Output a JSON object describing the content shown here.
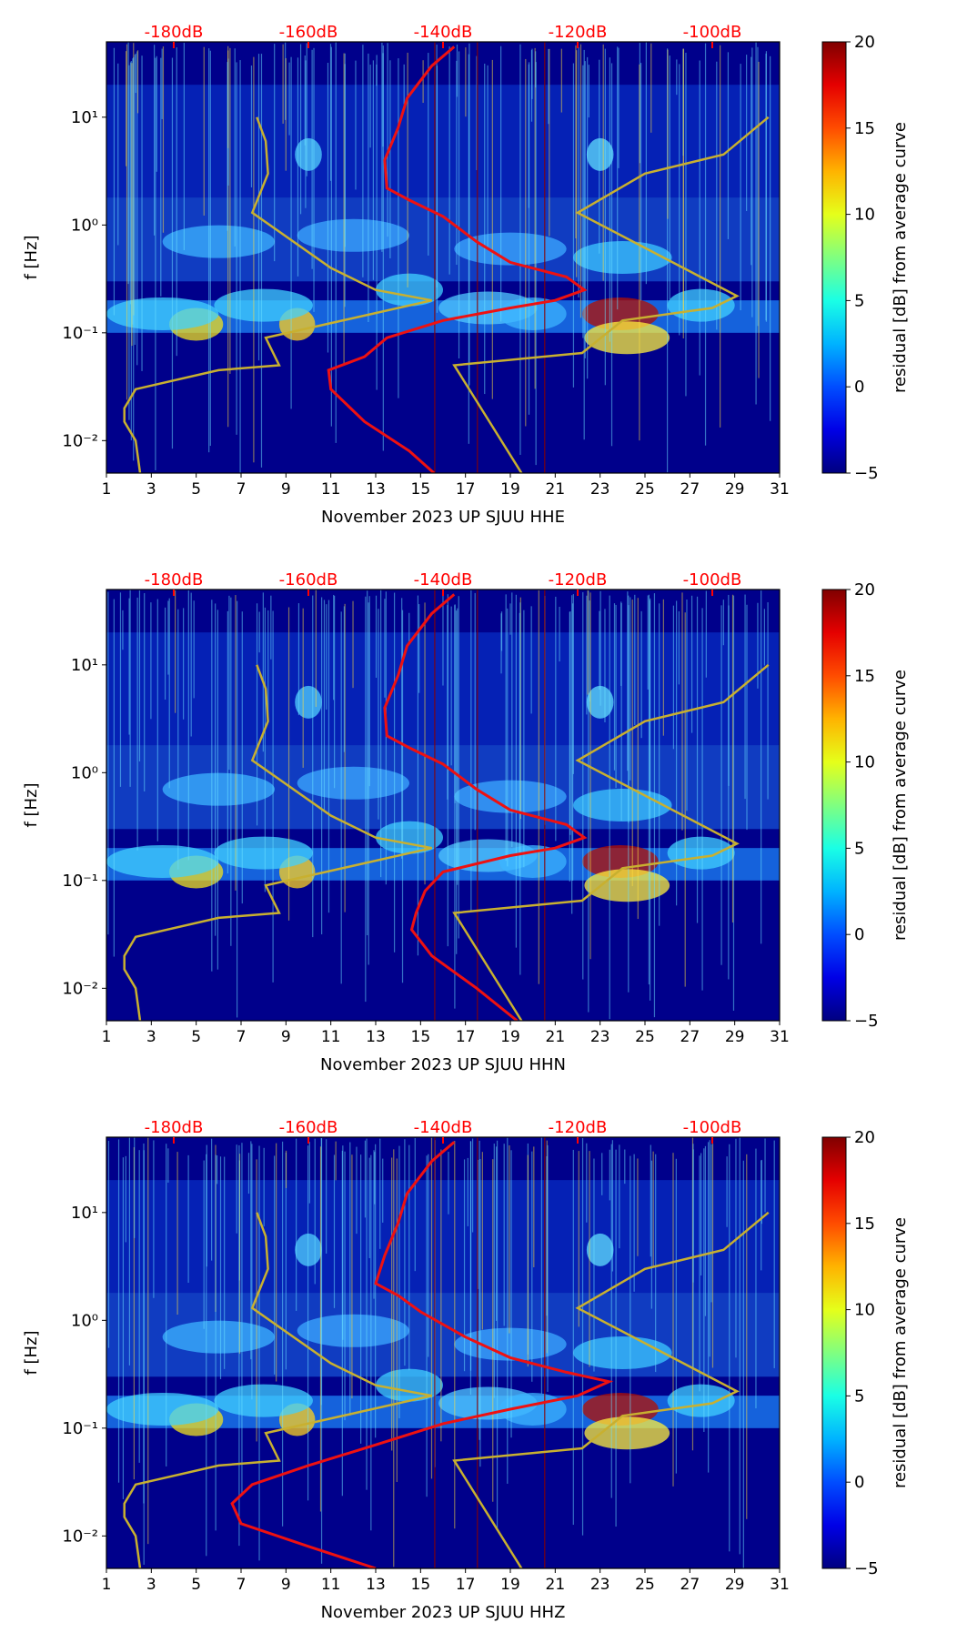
{
  "colors": {
    "top_db_label": "#ff0000",
    "psd_curve": "#ee1111",
    "noise_model": "#c8b030",
    "background_low": "#00008b"
  },
  "chart_data": [
    {
      "type": "heatmap",
      "title": "",
      "xlabel": "November 2023 UP SJUU  HHE",
      "ylabel": "f [Hz]",
      "x_range": [
        1,
        31
      ],
      "x_ticks": [
        1,
        3,
        5,
        7,
        9,
        11,
        13,
        15,
        17,
        19,
        21,
        23,
        25,
        27,
        29,
        31
      ],
      "y_scale": "log",
      "y_range": [
        0.005,
        50
      ],
      "y_tick_labels": [
        {
          "value": 10,
          "label": "10¹"
        },
        {
          "value": 1,
          "label": "10⁰"
        },
        {
          "value": 0.1,
          "label": "10⁻¹"
        },
        {
          "value": 0.01,
          "label": "10⁻²"
        }
      ],
      "top_axis_labels": [
        {
          "day": 4,
          "label": "-180dB"
        },
        {
          "day": 10,
          "label": "-160dB"
        },
        {
          "day": 16,
          "label": "-140dB"
        },
        {
          "day": 22,
          "label": "-120dB"
        },
        {
          "day": 28,
          "label": "-100dB"
        }
      ],
      "colorbar": {
        "label": "residual [dB] from average curve",
        "range": [
          -5,
          20
        ],
        "ticks": [
          -5,
          0,
          5,
          10,
          15,
          20
        ],
        "colormap": "jet"
      },
      "series": [
        {
          "name": "mean PSD",
          "color": "#ee1111",
          "points": [
            [
              15.6,
              0.005
            ],
            [
              14.5,
              0.008
            ],
            [
              12.5,
              0.015
            ],
            [
              11.0,
              0.03
            ],
            [
              10.9,
              0.045
            ],
            [
              12.5,
              0.06
            ],
            [
              13.5,
              0.09
            ],
            [
              16,
              0.13
            ],
            [
              19,
              0.17
            ],
            [
              21,
              0.2
            ],
            [
              22.3,
              0.25
            ],
            [
              21.5,
              0.33
            ],
            [
              19,
              0.45
            ],
            [
              17.5,
              0.7
            ],
            [
              16,
              1.2
            ],
            [
              14.5,
              1.7
            ],
            [
              13.5,
              2.2
            ],
            [
              13.4,
              4
            ],
            [
              14,
              8
            ],
            [
              14.4,
              15
            ],
            [
              15.5,
              30
            ],
            [
              16.5,
              45
            ]
          ]
        },
        {
          "name": "noise model low",
          "color": "#c8b030",
          "points": [
            [
              2.5,
              0.005
            ],
            [
              2.3,
              0.01
            ],
            [
              1.8,
              0.015
            ],
            [
              1.8,
              0.02
            ],
            [
              2.3,
              0.03
            ],
            [
              6,
              0.045
            ],
            [
              8.7,
              0.05
            ],
            [
              8.1,
              0.09
            ],
            [
              15.5,
              0.2
            ],
            [
              13,
              0.25
            ],
            [
              11,
              0.4
            ],
            [
              7.5,
              1.3
            ],
            [
              8.2,
              3
            ],
            [
              8.1,
              6
            ],
            [
              7.7,
              10
            ]
          ]
        },
        {
          "name": "noise model high",
          "color": "#c8b030",
          "points": [
            [
              19.5,
              0.005
            ],
            [
              16.5,
              0.05
            ],
            [
              22.2,
              0.065
            ],
            [
              24,
              0.13
            ],
            [
              28,
              0.17
            ],
            [
              29.1,
              0.22
            ],
            [
              22,
              1.3
            ],
            [
              25,
              3
            ],
            [
              28.5,
              4.5
            ],
            [
              30.5,
              10
            ]
          ]
        }
      ]
    },
    {
      "type": "heatmap",
      "title": "",
      "xlabel": "November 2023 UP SJUU  HHN",
      "ylabel": "f [Hz]",
      "x_range": [
        1,
        31
      ],
      "x_ticks": [
        1,
        3,
        5,
        7,
        9,
        11,
        13,
        15,
        17,
        19,
        21,
        23,
        25,
        27,
        29,
        31
      ],
      "y_scale": "log",
      "y_range": [
        0.005,
        50
      ],
      "y_tick_labels": [
        {
          "value": 10,
          "label": "10¹"
        },
        {
          "value": 1,
          "label": "10⁰"
        },
        {
          "value": 0.1,
          "label": "10⁻¹"
        },
        {
          "value": 0.01,
          "label": "10⁻²"
        }
      ],
      "top_axis_labels": [
        {
          "day": 4,
          "label": "-180dB"
        },
        {
          "day": 10,
          "label": "-160dB"
        },
        {
          "day": 16,
          "label": "-140dB"
        },
        {
          "day": 22,
          "label": "-120dB"
        },
        {
          "day": 28,
          "label": "-100dB"
        }
      ],
      "colorbar": {
        "label": "residual [dB] from average curve",
        "range": [
          -5,
          20
        ],
        "ticks": [
          -5,
          0,
          5,
          10,
          15,
          20
        ],
        "colormap": "jet"
      },
      "series": [
        {
          "name": "mean PSD",
          "color": "#ee1111",
          "points": [
            [
              19.3,
              0.005
            ],
            [
              17.5,
              0.01
            ],
            [
              15.5,
              0.02
            ],
            [
              14.6,
              0.035
            ],
            [
              14.8,
              0.05
            ],
            [
              15.2,
              0.08
            ],
            [
              16,
              0.12
            ],
            [
              19,
              0.17
            ],
            [
              21,
              0.2
            ],
            [
              22.3,
              0.25
            ],
            [
              21.5,
              0.33
            ],
            [
              19,
              0.45
            ],
            [
              17.5,
              0.7
            ],
            [
              16,
              1.2
            ],
            [
              14.5,
              1.7
            ],
            [
              13.5,
              2.2
            ],
            [
              13.4,
              4
            ],
            [
              14,
              8
            ],
            [
              14.4,
              15
            ],
            [
              15.5,
              30
            ],
            [
              16.5,
              45
            ]
          ]
        },
        {
          "name": "noise model low",
          "color": "#c8b030",
          "points": [
            [
              2.5,
              0.005
            ],
            [
              2.3,
              0.01
            ],
            [
              1.8,
              0.015
            ],
            [
              1.8,
              0.02
            ],
            [
              2.3,
              0.03
            ],
            [
              6,
              0.045
            ],
            [
              8.7,
              0.05
            ],
            [
              8.1,
              0.09
            ],
            [
              15.5,
              0.2
            ],
            [
              13,
              0.25
            ],
            [
              11,
              0.4
            ],
            [
              7.5,
              1.3
            ],
            [
              8.2,
              3
            ],
            [
              8.1,
              6
            ],
            [
              7.7,
              10
            ]
          ]
        },
        {
          "name": "noise model high",
          "color": "#c8b030",
          "points": [
            [
              19.5,
              0.005
            ],
            [
              16.5,
              0.05
            ],
            [
              22.2,
              0.065
            ],
            [
              24,
              0.13
            ],
            [
              28,
              0.17
            ],
            [
              29.1,
              0.22
            ],
            [
              22,
              1.3
            ],
            [
              25,
              3
            ],
            [
              28.5,
              4.5
            ],
            [
              30.5,
              10
            ]
          ]
        }
      ]
    },
    {
      "type": "heatmap",
      "title": "",
      "xlabel": "November 2023 UP SJUU  HHZ",
      "ylabel": "f [Hz]",
      "x_range": [
        1,
        31
      ],
      "x_ticks": [
        1,
        3,
        5,
        7,
        9,
        11,
        13,
        15,
        17,
        19,
        21,
        23,
        25,
        27,
        29,
        31
      ],
      "y_scale": "log",
      "y_range": [
        0.005,
        50
      ],
      "y_tick_labels": [
        {
          "value": 10,
          "label": "10¹"
        },
        {
          "value": 1,
          "label": "10⁰"
        },
        {
          "value": 0.1,
          "label": "10⁻¹"
        },
        {
          "value": 0.01,
          "label": "10⁻²"
        }
      ],
      "top_axis_labels": [
        {
          "day": 4,
          "label": "-180dB"
        },
        {
          "day": 10,
          "label": "-160dB"
        },
        {
          "day": 16,
          "label": "-140dB"
        },
        {
          "day": 22,
          "label": "-120dB"
        },
        {
          "day": 28,
          "label": "-100dB"
        }
      ],
      "colorbar": {
        "label": "residual [dB] from average curve",
        "range": [
          -5,
          20
        ],
        "ticks": [
          -5,
          0,
          5,
          10,
          15,
          20
        ],
        "colormap": "jet"
      },
      "series": [
        {
          "name": "mean PSD",
          "color": "#ee1111",
          "points": [
            [
              13,
              0.005
            ],
            [
              10,
              0.008
            ],
            [
              7,
              0.013
            ],
            [
              6.6,
              0.02
            ],
            [
              7.5,
              0.03
            ],
            [
              10,
              0.045
            ],
            [
              13,
              0.07
            ],
            [
              16,
              0.11
            ],
            [
              19,
              0.15
            ],
            [
              22,
              0.2
            ],
            [
              23.4,
              0.27
            ],
            [
              21.5,
              0.33
            ],
            [
              19,
              0.45
            ],
            [
              17,
              0.7
            ],
            [
              15,
              1.2
            ],
            [
              14,
              1.7
            ],
            [
              13,
              2.2
            ],
            [
              13.4,
              4
            ],
            [
              14,
              8
            ],
            [
              14.4,
              15
            ],
            [
              15.5,
              30
            ],
            [
              16.5,
              45
            ]
          ]
        },
        {
          "name": "noise model low",
          "color": "#c8b030",
          "points": [
            [
              2.5,
              0.005
            ],
            [
              2.3,
              0.01
            ],
            [
              1.8,
              0.015
            ],
            [
              1.8,
              0.02
            ],
            [
              2.3,
              0.03
            ],
            [
              6,
              0.045
            ],
            [
              8.7,
              0.05
            ],
            [
              8.1,
              0.09
            ],
            [
              15.5,
              0.2
            ],
            [
              13,
              0.25
            ],
            [
              11,
              0.4
            ],
            [
              7.5,
              1.3
            ],
            [
              8.2,
              3
            ],
            [
              8.1,
              6
            ],
            [
              7.7,
              10
            ]
          ]
        },
        {
          "name": "noise model high",
          "color": "#c8b030",
          "points": [
            [
              19.5,
              0.005
            ],
            [
              16.5,
              0.05
            ],
            [
              22.2,
              0.065
            ],
            [
              24,
              0.13
            ],
            [
              28,
              0.17
            ],
            [
              29.1,
              0.22
            ],
            [
              22,
              1.3
            ],
            [
              25,
              3
            ],
            [
              28.5,
              4.5
            ],
            [
              30.5,
              10
            ]
          ]
        }
      ]
    }
  ]
}
